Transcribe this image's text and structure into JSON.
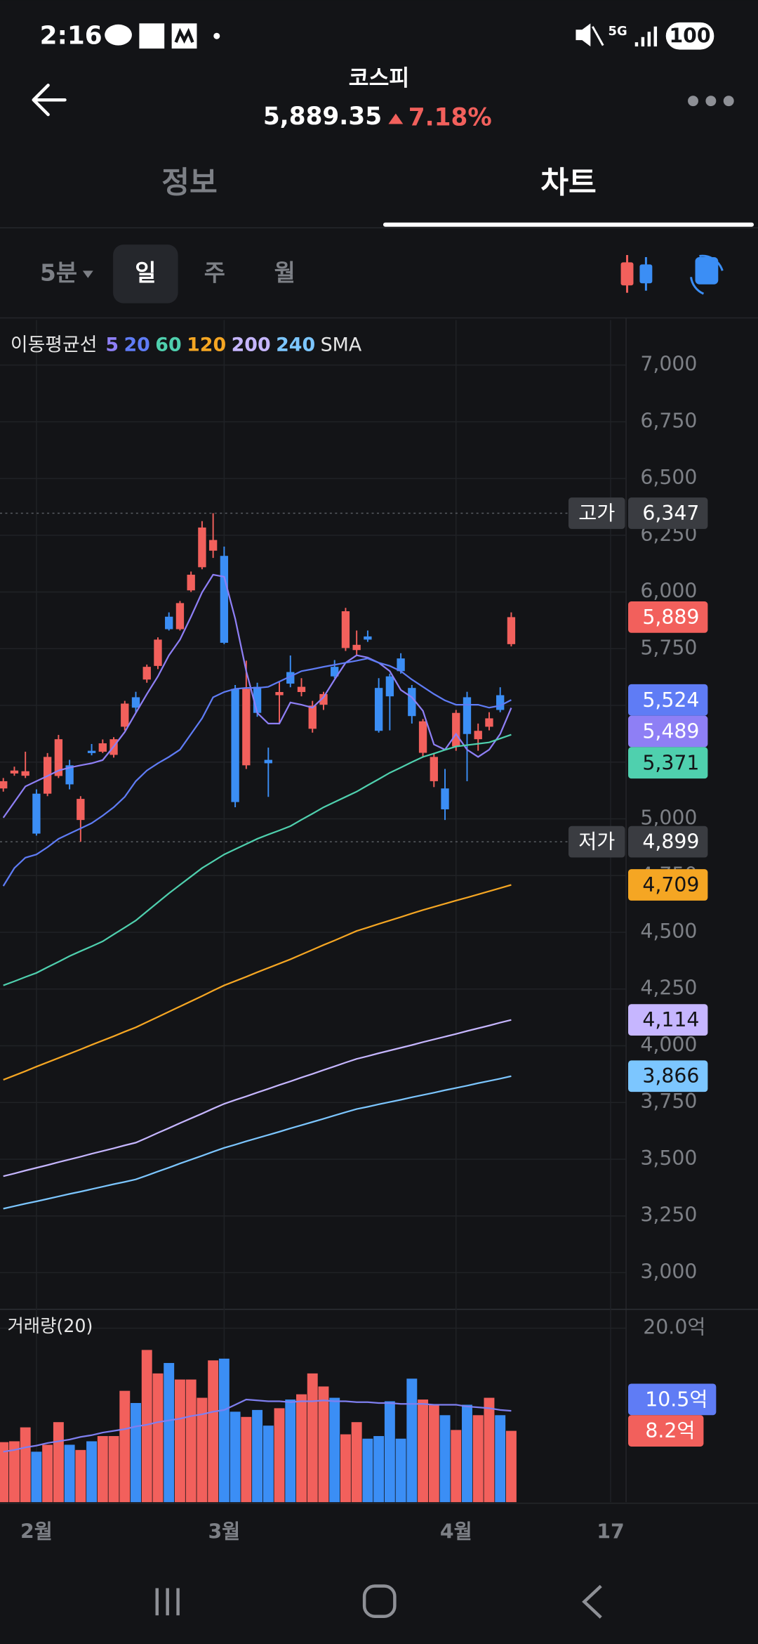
{
  "status_bar": {
    "time": "2:16",
    "network": "5G",
    "battery": "100"
  },
  "header": {
    "title": "코스피",
    "price": "5,889.35",
    "change": "7.18%"
  },
  "tabs": [
    "정보",
    "차트"
  ],
  "periods": [
    "5분",
    "일",
    "주",
    "월"
  ],
  "chart_data": [
    {
      "type": "candlestick",
      "legend_title": "이동평균선",
      "legend_suffix": "SMA",
      "up_color": "#f2605c",
      "down_color": "#3b8ef5",
      "open": [
        5134,
        5200,
        5190,
        5111,
        5111,
        5189,
        5236,
        4995,
        5300,
        5296,
        5282,
        5406,
        5536,
        5614,
        5674,
        5891,
        5836,
        6007,
        6109,
        6182,
        6159,
        5573,
        5236,
        5582,
        5260,
        5545,
        5647,
        5559,
        5397,
        5503,
        5670,
        5753,
        5744,
        5804,
        5577,
        5628,
        5707,
        5577,
        5291,
        5166,
        5134,
        5319,
        5536,
        5351,
        5406,
        5545,
        5770
      ],
      "high": [
        5180,
        5230,
        5296,
        5130,
        5290,
        5370,
        5260,
        5100,
        5330,
        5350,
        5360,
        5520,
        5560,
        5680,
        5800,
        5910,
        5960,
        6090,
        6312,
        6347,
        6200,
        5590,
        5697,
        5600,
        5314,
        5605,
        5720,
        5620,
        5520,
        5560,
        5700,
        5930,
        5830,
        5830,
        5620,
        5640,
        5730,
        5590,
        5440,
        5290,
        5220,
        5480,
        5560,
        5420,
        5470,
        5580,
        5910
      ],
      "low": [
        5120,
        5190,
        5180,
        4926,
        5100,
        5180,
        5130,
        4899,
        5280,
        5290,
        5270,
        5390,
        5470,
        5600,
        5660,
        5830,
        5830,
        6000,
        6100,
        6150,
        5770,
        5051,
        5220,
        5450,
        5097,
        5420,
        5580,
        5540,
        5380,
        5480,
        5620,
        5740,
        5721,
        5780,
        5380,
        5390,
        5640,
        5420,
        5270,
        5140,
        4995,
        5300,
        5166,
        5300,
        5390,
        5470,
        5760
      ],
      "close": [
        5166,
        5213,
        5210,
        4935,
        5273,
        5351,
        5152,
        5088,
        5290,
        5333,
        5351,
        5508,
        5490,
        5670,
        5790,
        5836,
        5951,
        6076,
        6284,
        6229,
        5776,
        5074,
        5573,
        5467,
        5245,
        5559,
        5596,
        5582,
        5499,
        5550,
        5628,
        5915,
        5767,
        5790,
        5388,
        5540,
        5651,
        5453,
        5430,
        5273,
        5042,
        5467,
        5374,
        5388,
        5443,
        5480,
        5889
      ],
      "last_label": "5,889",
      "series": [
        {
          "name": "5",
          "color": "#8e7ff5",
          "end_label": "5,489",
          "values": [
            5005,
            5074,
            5143,
            5166,
            5189,
            5213,
            5226,
            5236,
            5245,
            5259,
            5319,
            5383,
            5467,
            5550,
            5628,
            5721,
            5790,
            5891,
            5998,
            6076,
            6067,
            5882,
            5651,
            5467,
            5420,
            5420,
            5513,
            5503,
            5490,
            5536,
            5614,
            5688,
            5721,
            5711,
            5688,
            5651,
            5568,
            5536,
            5476,
            5328,
            5305,
            5374,
            5305,
            5273,
            5305,
            5374,
            5489
          ]
        },
        {
          "name": "20",
          "color": "#5f7cf5",
          "end_label": "5,524",
          "values": [
            4704,
            4783,
            4829,
            4843,
            4875,
            4912,
            4935,
            4958,
            4981,
            5014,
            5051,
            5097,
            5166,
            5213,
            5245,
            5273,
            5305,
            5374,
            5443,
            5536,
            5559,
            5573,
            5577,
            5577,
            5582,
            5605,
            5628,
            5651,
            5660,
            5670,
            5679,
            5688,
            5697,
            5707,
            5688,
            5674,
            5651,
            5614,
            5582,
            5550,
            5522,
            5503,
            5503,
            5503,
            5490,
            5499,
            5524
          ]
        },
        {
          "name": "60",
          "color": "#4fd0ae",
          "end_label": "5,371",
          "values": [
            4266,
            4284,
            4303,
            4321,
            4346,
            4370,
            4395,
            4417,
            4438,
            4460,
            4491,
            4521,
            4552,
            4592,
            4632,
            4672,
            4709,
            4746,
            4783,
            4813,
            4843,
            4866,
            4889,
            4912,
            4931,
            4949,
            4968,
            4996,
            5023,
            5051,
            5074,
            5097,
            5120,
            5148,
            5175,
            5203,
            5226,
            5250,
            5273,
            5288,
            5304,
            5319,
            5325,
            5331,
            5337,
            5354,
            5371
          ]
        },
        {
          "name": "120",
          "color": "#f5a623",
          "end_label": "4,709",
          "values": [
            3850,
            3869,
            3888,
            3908,
            3927,
            3946,
            3965,
            3984,
            4004,
            4023,
            4042,
            4062,
            4081,
            4104,
            4127,
            4150,
            4173,
            4196,
            4219,
            4243,
            4266,
            4285,
            4304,
            4324,
            4343,
            4362,
            4381,
            4402,
            4423,
            4444,
            4464,
            4485,
            4506,
            4521,
            4537,
            4552,
            4567,
            4583,
            4598,
            4612,
            4626,
            4640,
            4653,
            4667,
            4681,
            4695,
            4709
          ]
        },
        {
          "name": "200",
          "color": "#c6b6ff",
          "end_label": "4,114",
          "values": [
            3425,
            3437,
            3450,
            3462,
            3474,
            3487,
            3499,
            3511,
            3524,
            3536,
            3548,
            3561,
            3573,
            3594,
            3616,
            3637,
            3659,
            3680,
            3701,
            3723,
            3744,
            3761,
            3777,
            3794,
            3810,
            3827,
            3843,
            3860,
            3876,
            3893,
            3909,
            3926,
            3942,
            3954,
            3967,
            3979,
            3991,
            4003,
            4016,
            4028,
            4040,
            4052,
            4065,
            4077,
            4089,
            4102,
            4114
          ]
        },
        {
          "name": "240",
          "color": "#7cc6ff",
          "end_label": "3,866",
          "values": [
            3282,
            3293,
            3304,
            3314,
            3325,
            3336,
            3347,
            3357,
            3368,
            3379,
            3390,
            3400,
            3411,
            3428,
            3446,
            3463,
            3481,
            3498,
            3515,
            3533,
            3550,
            3564,
            3579,
            3593,
            3607,
            3621,
            3636,
            3650,
            3664,
            3678,
            3693,
            3707,
            3721,
            3731,
            3742,
            3752,
            3762,
            3773,
            3783,
            3793,
            3804,
            3814,
            3824,
            3835,
            3845,
            3855,
            3866
          ]
        }
      ],
      "annotations": [
        {
          "label": "고가",
          "value": 6347,
          "value_label": "6,347"
        },
        {
          "label": "저가",
          "value": 4899,
          "value_label": "4,899"
        }
      ],
      "xlim": [
        -0.3,
        56.4
      ],
      "xticks": [
        {
          "value": 3,
          "label": "2월"
        },
        {
          "value": 20,
          "label": "3월"
        },
        {
          "value": 41,
          "label": "4월"
        },
        {
          "value": 55,
          "label": "17"
        }
      ],
      "ylim": [
        3000,
        7000
      ],
      "yticks": [
        {
          "value": 3000,
          "label": "3,000"
        },
        {
          "value": 3250,
          "label": "3,250"
        },
        {
          "value": 3500,
          "label": "3,500"
        },
        {
          "value": 3750,
          "label": "3,750"
        },
        {
          "value": 4000,
          "label": "4,000"
        },
        {
          "value": 4250,
          "label": "4,250"
        },
        {
          "value": 4500,
          "label": "4,500"
        },
        {
          "value": 4750,
          "label": "4,750"
        },
        {
          "value": 5000,
          "label": "5,000"
        },
        {
          "value": 5250,
          "label": "5,250"
        },
        {
          "value": 5500,
          "label": "5,500"
        },
        {
          "value": 5750,
          "label": "5,750"
        },
        {
          "value": 6000,
          "label": "6,000"
        },
        {
          "value": 6250,
          "label": "6,250"
        },
        {
          "value": 6500,
          "label": "6,500"
        },
        {
          "value": 6750,
          "label": "6,750"
        },
        {
          "value": 7000,
          "label": "7,000"
        }
      ],
      "grid": true
    },
    {
      "type": "bar",
      "title": "거래량(20)",
      "values": [
        6.9,
        7.0,
        8.6,
        5.8,
        6.6,
        9.2,
        6.6,
        6.0,
        7.0,
        7.6,
        7.6,
        12.8,
        11.4,
        17.5,
        14.8,
        16.0,
        14.1,
        14.1,
        12.0,
        16.3,
        16.5,
        10.4,
        9.8,
        10.6,
        8.8,
        10.8,
        11.8,
        12.4,
        14.8,
        13.3,
        12.0,
        7.8,
        9.2,
        7.3,
        7.6,
        11.6,
        7.3,
        14.2,
        11.8,
        11.2,
        10.0,
        8.3,
        11.2,
        10.0,
        12.0,
        10.0,
        8.2
      ],
      "last_label": "8.2억",
      "ma": {
        "color": "#7f7ff0",
        "end_label": "10.5억",
        "values": [
          5.8,
          6.0,
          6.3,
          6.5,
          6.8,
          7.0,
          7.2,
          7.5,
          7.7,
          8.0,
          8.2,
          8.4,
          8.7,
          8.9,
          9.2,
          9.4,
          9.6,
          9.9,
          10.1,
          10.4,
          10.6,
          11.2,
          11.8,
          11.7,
          11.6,
          11.6,
          11.5,
          11.6,
          11.6,
          11.7,
          11.6,
          11.6,
          11.5,
          11.5,
          11.4,
          11.4,
          11.3,
          11.3,
          11.3,
          11.2,
          11.2,
          11.2,
          11.0,
          10.9,
          10.8,
          10.6,
          10.5
        ]
      },
      "ylim": [
        0,
        20
      ],
      "yticks": [
        {
          "value": 20,
          "label": "20.0억"
        }
      ]
    }
  ]
}
